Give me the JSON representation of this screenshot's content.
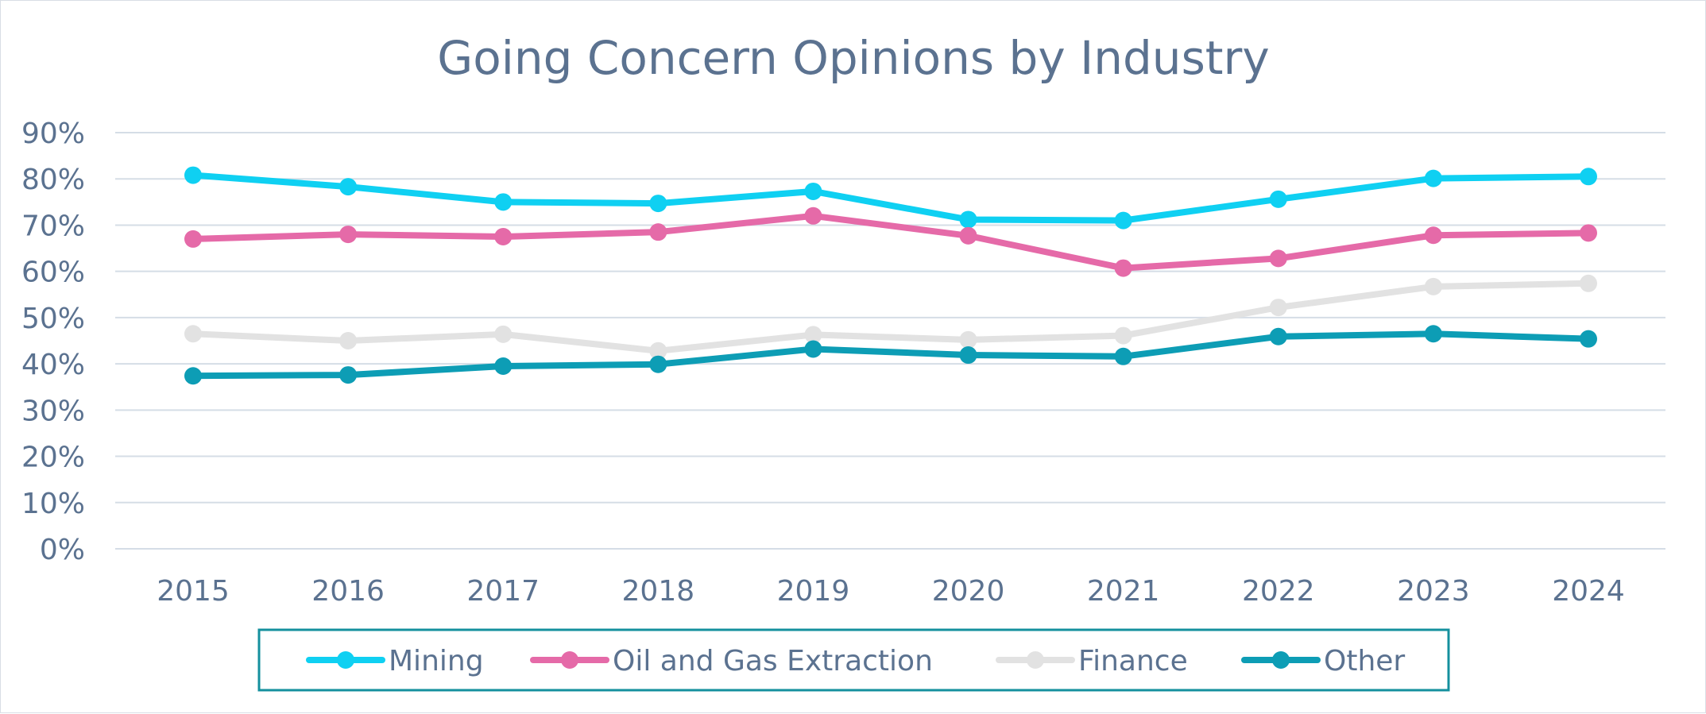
{
  "chart_data": {
    "type": "line",
    "title": "Going Concern Opinions by Industry",
    "xlabel": "",
    "ylabel": "",
    "categories": [
      "2015",
      "2016",
      "2017",
      "2018",
      "2019",
      "2020",
      "2021",
      "2022",
      "2023",
      "2024"
    ],
    "ylim": [
      0,
      90
    ],
    "yticks": [
      0,
      10,
      20,
      30,
      40,
      50,
      60,
      70,
      80,
      90
    ],
    "ytick_labels": [
      "0%",
      "10%",
      "20%",
      "30%",
      "40%",
      "50%",
      "60%",
      "70%",
      "80%",
      "90%"
    ],
    "grid": true,
    "legend_position": "bottom",
    "series": [
      {
        "name": "Mining",
        "color": "#0fd0f2",
        "values": [
          80.8,
          78.3,
          75.0,
          74.7,
          77.3,
          71.2,
          71.0,
          75.6,
          80.1,
          80.5
        ]
      },
      {
        "name": "Oil and Gas Extraction",
        "color": "#e56aa8",
        "values": [
          67.0,
          68.0,
          67.5,
          68.5,
          72.0,
          67.7,
          60.7,
          62.8,
          67.8,
          68.3
        ]
      },
      {
        "name": "Finance",
        "color": "#e2e2e2",
        "values": [
          46.5,
          45.0,
          46.4,
          42.8,
          46.3,
          45.2,
          46.1,
          52.2,
          56.7,
          57.4
        ]
      },
      {
        "name": "Other",
        "color": "#0d9db5",
        "values": [
          37.4,
          37.6,
          39.5,
          39.9,
          43.2,
          41.9,
          41.6,
          45.9,
          46.5,
          45.4
        ]
      }
    ]
  }
}
